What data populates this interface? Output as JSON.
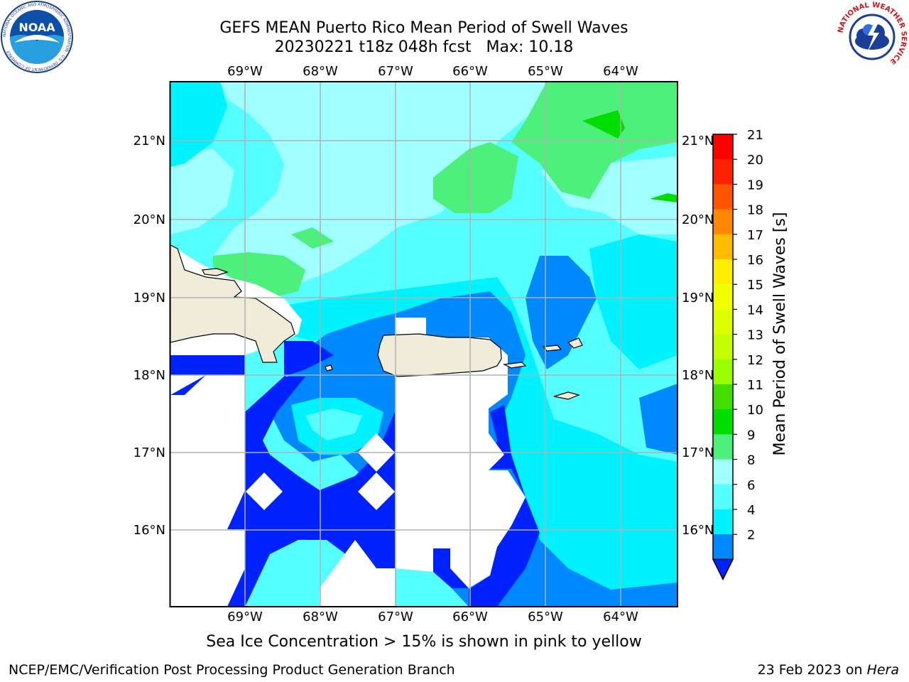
{
  "header": {
    "title_line1": "GEFS MEAN Puerto Rico Mean Period of Swell Waves",
    "title_line2": "20230221 t18z 048h fcst   Max: 10.18"
  },
  "map": {
    "lon_labels": [
      "69°W",
      "68°W",
      "67°W",
      "66°W",
      "65°W",
      "64°W"
    ],
    "lat_labels": [
      "21°N",
      "20°N",
      "19°N",
      "18°N",
      "17°N",
      "16°N"
    ],
    "colors": {
      "land": "#efedd9",
      "ice_mask": "#ffffff",
      "gridline": "#b0b0b0"
    }
  },
  "colorbar": {
    "label": "Mean Period of Swell Waves [s]",
    "ticks": [
      "21",
      "20",
      "19",
      "18",
      "17",
      "16",
      "15",
      "14",
      "13",
      "12",
      "11",
      "10",
      "9",
      "8",
      "6",
      "4",
      "2"
    ],
    "colors": [
      "#ff0000",
      "#ff2200",
      "#ff5500",
      "#ff8800",
      "#ffbb00",
      "#ffee00",
      "#f2ff00",
      "#ddff00",
      "#c4ff00",
      "#9cff00",
      "#44dd00",
      "#00dd00",
      "#4cf07a",
      "#a0ffff",
      "#55ffff",
      "#00f2ff",
      "#0088ff"
    ],
    "under_color": "#0022ff"
  },
  "note": "Sea Ice Concentration > 15% is shown in pink to yellow",
  "footer": {
    "left": "NCEP/EMC/Verification Post Processing Product Generation Branch",
    "right_prefix": "23 Feb 2023 on ",
    "right_machine": "Hera"
  },
  "logos": {
    "noaa_text": "NOAA",
    "noaa_ring": "NATIONAL OCEANIC AND ATMOSPHERIC ADMINISTRATION · U.S. DEPARTMENT OF COMMERCE",
    "nws_ring": "NATIONAL WEATHER SERVICE"
  }
}
